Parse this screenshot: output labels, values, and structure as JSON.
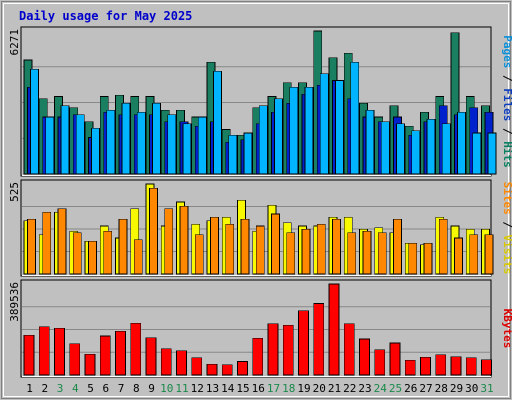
{
  "chart_data": {
    "type": "bar",
    "title": "Daily usage for May 2025",
    "categories": [
      "1",
      "2",
      "3",
      "4",
      "5",
      "6",
      "7",
      "8",
      "9",
      "10",
      "11",
      "12",
      "13",
      "14",
      "15",
      "16",
      "17",
      "18",
      "19",
      "20",
      "21",
      "22",
      "23",
      "24",
      "25",
      "26",
      "27",
      "28",
      "29",
      "30",
      "31"
    ],
    "weekend_days": [
      3,
      4,
      10,
      11,
      17,
      18,
      24,
      25,
      31
    ],
    "panels": [
      {
        "id": "hits",
        "max_label": "6271",
        "ymax": 6271,
        "side_label": [
          {
            "text": "Pages",
            "color": "#0a8fd8"
          },
          {
            "text": " / ",
            "color": "#000000"
          },
          {
            "text": "Files",
            "color": "#0b3dbd"
          },
          {
            "text": " / ",
            "color": "#000000"
          },
          {
            "text": "Hits",
            "color": "#0a8060"
          }
        ],
        "series": [
          {
            "name": "Hits",
            "color": "#1a7f60",
            "values": [
              5000,
              3300,
              3400,
              2900,
              2300,
              3400,
              3450,
              3400,
              3400,
              2800,
              2800,
              2500,
              4900,
              1950,
              1700,
              2900,
              3400,
              4000,
              4000,
              6271,
              5100,
              5300,
              3100,
              2500,
              3000,
              2100,
              2700,
              3400,
              6200,
              3400,
              3000
            ]
          },
          {
            "name": "Files",
            "color": "#0022cc",
            "values": [
              3800,
              2500,
              2500,
              2600,
              1600,
              2700,
              2600,
              2600,
              2600,
              2300,
              2300,
              2100,
              2300,
              1400,
              1500,
              2200,
              2700,
              3100,
              3500,
              3900,
              4100,
              3300,
              2500,
              2300,
              2500,
              1700,
              2300,
              3000,
              2600,
              2900,
              2700
            ]
          },
          {
            "name": "Pages",
            "color": "#00b4ff",
            "values": [
              4600,
              2500,
              3000,
              2600,
              2000,
              2800,
              3100,
              2700,
              3100,
              2600,
              2200,
              2500,
              4500,
              1700,
              1800,
              3000,
              3300,
              3800,
              3800,
              4400,
              4100,
              4900,
              2800,
              2300,
              2200,
              1900,
              2400,
              2200,
              2700,
              1800,
              1800
            ]
          }
        ]
      },
      {
        "id": "visits",
        "max_label": "525",
        "ymax": 525,
        "side_label": [
          {
            "text": "Sites",
            "color": "#ff8800"
          },
          {
            "text": " / ",
            "color": "#000000"
          },
          {
            "text": "Visits",
            "color": "#d8c800"
          }
        ],
        "series": [
          {
            "name": "Visits",
            "color": "#f8f800",
            "values": [
              310,
              230,
              360,
              250,
              190,
              280,
              210,
              380,
              525,
              280,
              420,
              290,
              310,
              330,
              430,
              250,
              400,
              300,
              280,
              280,
              330,
              330,
              260,
              270,
              240,
              180,
              170,
              330,
              280,
              260,
              260
            ]
          },
          {
            "name": "Sites",
            "color": "#ff8800",
            "values": [
              320,
              360,
              380,
              240,
              190,
              250,
              320,
              200,
              500,
              380,
              395,
              230,
              330,
              290,
              320,
              280,
              350,
              240,
              260,
              290,
              320,
              240,
              250,
              240,
              320,
              180,
              180,
              320,
              210,
              230,
              230
            ]
          }
        ]
      },
      {
        "id": "kbytes",
        "max_label": "389536",
        "ymax": 389536,
        "side_label": [
          {
            "text": "KBytes",
            "color": "#dd0000"
          }
        ],
        "series": [
          {
            "name": "KBytes",
            "color": "#ff0000",
            "values": [
              170000,
              207000,
              200000,
              133000,
              88000,
              167000,
              188000,
              222000,
              160000,
              112000,
              103000,
              73000,
              46000,
              44000,
              58000,
              157000,
              220000,
              213000,
              275000,
              306000,
              389536,
              220000,
              154000,
              108000,
              137000,
              63000,
              76000,
              86000,
              78000,
              73000,
              65000
            ]
          }
        ]
      }
    ]
  }
}
